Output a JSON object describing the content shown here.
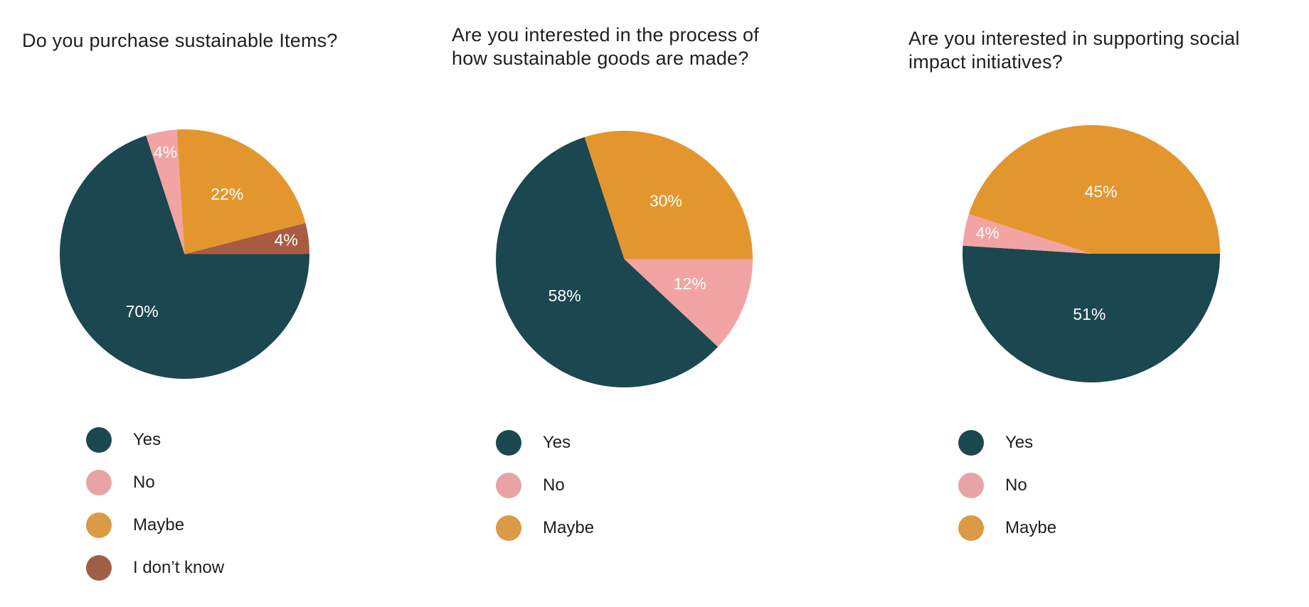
{
  "chart_data": [
    {
      "type": "pie",
      "title": "Do you purchase sustainable Items?",
      "slices": [
        {
          "name": "Yes",
          "value": 70,
          "label": "70%",
          "color": "#1b4750"
        },
        {
          "name": "No",
          "value": 4,
          "label": "4%",
          "color": "#f2a3a3"
        },
        {
          "name": "Maybe",
          "value": 22,
          "label": "22%",
          "color": "#e4962e"
        },
        {
          "name": "I don’t know",
          "value": 4,
          "label": "4%",
          "color": "#a85c42"
        }
      ],
      "legend": {
        "placement": "bottom",
        "entries": [
          {
            "name": "Yes",
            "color": "#1b4750"
          },
          {
            "name": "No",
            "color": "#e8a4a4"
          },
          {
            "name": "Maybe",
            "color": "#db9a45"
          },
          {
            "name": "I don’t know",
            "color": "#9e5f44"
          }
        ]
      }
    },
    {
      "type": "pie",
      "title": "Are you interested in the process of how sustainable goods are made?",
      "slices": [
        {
          "name": "Yes",
          "value": 58,
          "label": "58%",
          "color": "#1b4750"
        },
        {
          "name": "Maybe",
          "value": 30,
          "label": "30%",
          "color": "#e4962e"
        },
        {
          "name": "No",
          "value": 12,
          "label": "12%",
          "color": "#f2a3a3"
        }
      ],
      "legend": {
        "placement": "bottom",
        "entries": [
          {
            "name": "Yes",
            "color": "#1b4750"
          },
          {
            "name": "No",
            "color": "#e8a4a4"
          },
          {
            "name": "Maybe",
            "color": "#db9a45"
          }
        ]
      }
    },
    {
      "type": "pie",
      "title": "Are you interested in supporting social impact initiatives?",
      "slices": [
        {
          "name": "Yes",
          "value": 51,
          "label": "51%",
          "color": "#1b4750"
        },
        {
          "name": "No",
          "value": 4,
          "label": "4%",
          "color": "#f2a3a3"
        },
        {
          "name": "Maybe",
          "value": 45,
          "label": "45%",
          "color": "#e4962e"
        }
      ],
      "legend": {
        "placement": "bottom",
        "entries": [
          {
            "name": "Yes",
            "color": "#1b4750"
          },
          {
            "name": "No",
            "color": "#e8a4a4"
          },
          {
            "name": "Maybe",
            "color": "#db9a45"
          }
        ]
      }
    }
  ]
}
